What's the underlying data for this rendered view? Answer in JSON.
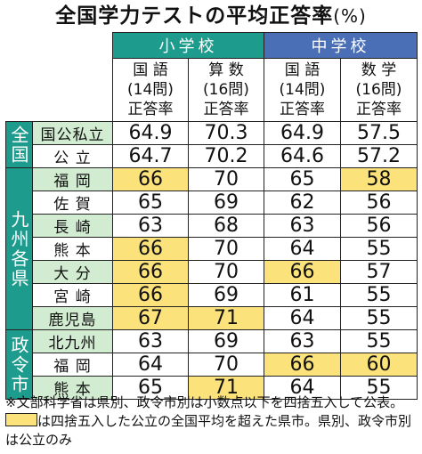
{
  "title": "全国学力テストの平均正答率",
  "unit": "(%)",
  "groups": {
    "elementary": "小学校",
    "junior": "中学校"
  },
  "columns": [
    {
      "l1": "国 語",
      "l2": "(14問)",
      "l3": "正答率"
    },
    {
      "l1": "算 数",
      "l2": "(16問)",
      "l3": "正答率"
    },
    {
      "l1": "国 語",
      "l2": "(14問)",
      "l3": "正答率"
    },
    {
      "l1": "数 学",
      "l2": "(16問)",
      "l3": "正答率"
    }
  ],
  "sections": {
    "national": "全国",
    "kyushu": "九州各県",
    "designated": "政令市"
  },
  "rows": [
    {
      "label": "国公私立",
      "values": [
        "64.9",
        "70.3",
        "64.9",
        "57.5"
      ]
    },
    {
      "label": "公 立",
      "values": [
        "64.7",
        "70.2",
        "64.6",
        "57.2"
      ]
    },
    {
      "label": "福 岡",
      "values": [
        "66",
        "70",
        "65",
        "58"
      ]
    },
    {
      "label": "佐 賀",
      "values": [
        "65",
        "69",
        "62",
        "56"
      ]
    },
    {
      "label": "長 崎",
      "values": [
        "63",
        "68",
        "63",
        "56"
      ]
    },
    {
      "label": "熊 本",
      "values": [
        "66",
        "70",
        "64",
        "55"
      ]
    },
    {
      "label": "大 分",
      "values": [
        "66",
        "70",
        "66",
        "57"
      ]
    },
    {
      "label": "宮 崎",
      "values": [
        "66",
        "69",
        "61",
        "55"
      ]
    },
    {
      "label": "鹿児島",
      "values": [
        "67",
        "71",
        "64",
        "55"
      ]
    },
    {
      "label": "北九州",
      "values": [
        "63",
        "69",
        "63",
        "55"
      ]
    },
    {
      "label": "福 岡",
      "values": [
        "64",
        "70",
        "66",
        "60"
      ]
    },
    {
      "label": "熊 本",
      "values": [
        "65",
        "71",
        "64",
        "55"
      ]
    }
  ],
  "highlight_color": "#fbe27a",
  "note": {
    "part1": "※文部科学省は県別、政令市別は小数点以下を四捨五入して公表。",
    "part2": "は四捨五入した公立の全国平均を超えた県市。県別、政令市別は公立のみ"
  }
}
